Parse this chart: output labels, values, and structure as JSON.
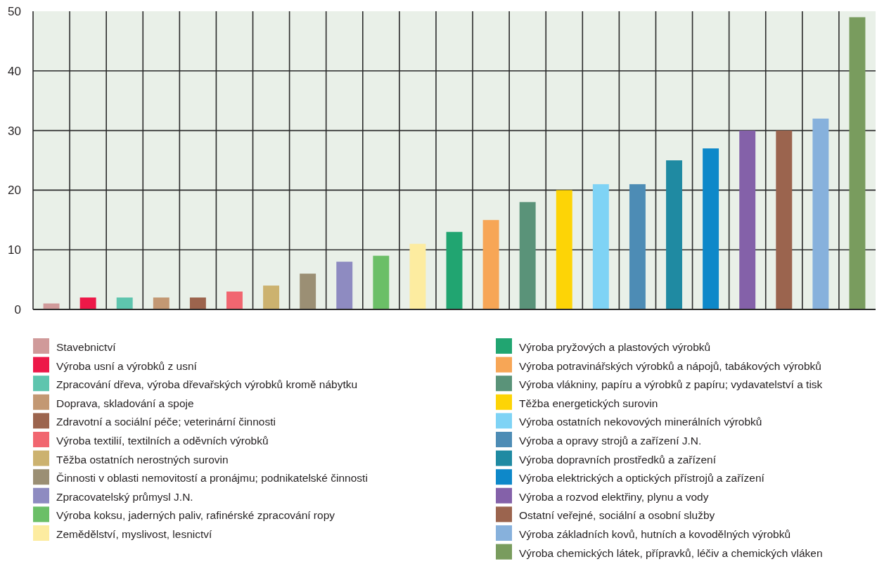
{
  "chart_data": {
    "type": "bar",
    "stacked": true,
    "categories": [
      null,
      null,
      null,
      null,
      null,
      null,
      null,
      null,
      null,
      null,
      null,
      null,
      null,
      null,
      null,
      null,
      null,
      null,
      null,
      null,
      null,
      null,
      null
    ],
    "series": [
      {
        "name": "Stavebnictví",
        "color": "#d09a9a",
        "values": [
          1,
          null,
          null,
          null,
          null,
          null,
          null,
          null,
          null,
          null,
          null,
          null,
          null,
          null,
          null,
          null,
          null,
          null,
          null,
          null,
          null,
          null,
          null
        ]
      },
      {
        "name": "Výroba usní a výrobků z usní",
        "color": "#ed1848",
        "values": [
          null,
          2,
          null,
          null,
          null,
          null,
          null,
          null,
          null,
          null,
          null,
          null,
          null,
          null,
          null,
          null,
          null,
          null,
          null,
          null,
          null,
          null,
          null
        ]
      },
      {
        "name": "Zpracování dřeva, výroba dřevařských výrobků kromě nábytku",
        "color": "#5ec5ae",
        "values": [
          null,
          null,
          2,
          null,
          null,
          null,
          null,
          null,
          null,
          null,
          null,
          null,
          null,
          null,
          null,
          null,
          null,
          null,
          null,
          null,
          null,
          null,
          null
        ]
      },
      {
        "name": "Doprava, skladování a spoje",
        "color": "#c39873",
        "values": [
          null,
          null,
          null,
          2,
          null,
          null,
          null,
          null,
          null,
          null,
          null,
          null,
          null,
          null,
          null,
          null,
          null,
          null,
          null,
          null,
          null,
          null,
          null
        ]
      },
      {
        "name": "Zdravotní a sociální péče; veterinární činnosti",
        "color": "#9c644d",
        "values": [
          null,
          null,
          null,
          null,
          2,
          null,
          null,
          null,
          null,
          null,
          null,
          null,
          null,
          null,
          null,
          null,
          null,
          null,
          null,
          null,
          null,
          null,
          null
        ]
      },
      {
        "name": "Výroba textilií, textilních a oděvních výrobků",
        "color": "#f16670",
        "values": [
          null,
          null,
          null,
          null,
          null,
          3,
          null,
          null,
          null,
          null,
          null,
          null,
          null,
          null,
          null,
          null,
          null,
          null,
          null,
          null,
          null,
          null,
          null
        ]
      },
      {
        "name": "Těžba ostatních nerostných surovin",
        "color": "#ccb26f",
        "values": [
          null,
          null,
          null,
          null,
          null,
          null,
          4,
          null,
          null,
          null,
          null,
          null,
          null,
          null,
          null,
          null,
          null,
          null,
          null,
          null,
          null,
          null,
          null
        ]
      },
      {
        "name": "Činnosti v oblasti nemovitostí a pronájmu; podnikatelské činnosti",
        "color": "#9b8f74",
        "values": [
          null,
          null,
          null,
          null,
          null,
          null,
          null,
          6,
          null,
          null,
          null,
          null,
          null,
          null,
          null,
          null,
          null,
          null,
          null,
          null,
          null,
          null,
          null
        ]
      },
      {
        "name": "Zpracovatelský průmysl J.N.",
        "color": "#8e8bc1",
        "values": [
          null,
          null,
          null,
          null,
          null,
          null,
          null,
          null,
          8,
          null,
          null,
          null,
          null,
          null,
          null,
          null,
          null,
          null,
          null,
          null,
          null,
          null,
          null
        ]
      },
      {
        "name": "Výroba koksu, jaderných paliv, rafinérské zpracování ropy",
        "color": "#6bbf67",
        "values": [
          null,
          null,
          null,
          null,
          null,
          null,
          null,
          null,
          null,
          9,
          null,
          null,
          null,
          null,
          null,
          null,
          null,
          null,
          null,
          null,
          null,
          null,
          null
        ]
      },
      {
        "name": "Zemědělství, myslivost, lesnictví",
        "color": "#fdeca0",
        "values": [
          null,
          null,
          null,
          null,
          null,
          null,
          null,
          null,
          null,
          null,
          11,
          null,
          null,
          null,
          null,
          null,
          null,
          null,
          null,
          null,
          null,
          null,
          null
        ]
      },
      {
        "name": "Výroba pryžových a plastových výrobků",
        "color": "#21a571",
        "values": [
          null,
          null,
          null,
          null,
          null,
          null,
          null,
          null,
          null,
          null,
          null,
          13,
          null,
          null,
          null,
          null,
          null,
          null,
          null,
          null,
          null,
          null,
          null
        ]
      },
      {
        "name": "Výroba potravinářských výrobků a nápojů, tabákových výrobků",
        "color": "#f7a656",
        "values": [
          null,
          null,
          null,
          null,
          null,
          null,
          null,
          null,
          null,
          null,
          null,
          null,
          15,
          null,
          null,
          null,
          null,
          null,
          null,
          null,
          null,
          null,
          null
        ]
      },
      {
        "name": "Výroba vlákniny, papíru a výrobků z papíru; vydavatelství a tisk",
        "color": "#5a9379",
        "values": [
          null,
          null,
          null,
          null,
          null,
          null,
          null,
          null,
          null,
          null,
          null,
          null,
          null,
          18,
          null,
          null,
          null,
          null,
          null,
          null,
          null,
          null,
          null
        ]
      },
      {
        "name": "Těžba energetických surovin",
        "color": "#fdd406",
        "values": [
          null,
          null,
          null,
          null,
          null,
          null,
          null,
          null,
          null,
          null,
          null,
          null,
          null,
          null,
          20,
          null,
          null,
          null,
          null,
          null,
          null,
          null,
          null
        ]
      },
      {
        "name": "Výroba ostatních nekovových minerálních výrobků",
        "color": "#7fd3f5",
        "values": [
          null,
          null,
          null,
          null,
          null,
          null,
          null,
          null,
          null,
          null,
          null,
          null,
          null,
          null,
          null,
          21,
          null,
          null,
          null,
          null,
          null,
          null,
          null
        ]
      },
      {
        "name": "Výroba a opravy strojů a zařízení J.N.",
        "color": "#4d8cb5",
        "values": [
          null,
          null,
          null,
          null,
          null,
          null,
          null,
          null,
          null,
          null,
          null,
          null,
          null,
          null,
          null,
          null,
          21,
          null,
          null,
          null,
          null,
          null,
          null
        ]
      },
      {
        "name": "Výroba dopravních prostředků a zařízení",
        "color": "#1f8aa2",
        "values": [
          null,
          null,
          null,
          null,
          null,
          null,
          null,
          null,
          null,
          null,
          null,
          null,
          null,
          null,
          null,
          null,
          null,
          25,
          null,
          null,
          null,
          null,
          null
        ]
      },
      {
        "name": "Výroba elektrických a optických přístrojů a zařízení",
        "color": "#0e88c9",
        "values": [
          null,
          null,
          null,
          null,
          null,
          null,
          null,
          null,
          null,
          null,
          null,
          null,
          null,
          null,
          null,
          null,
          null,
          null,
          27,
          null,
          null,
          null,
          null
        ]
      },
      {
        "name": "Výroba a rozvod elektřiny, plynu a vody",
        "color": "#8461a9",
        "values": [
          null,
          null,
          null,
          null,
          null,
          null,
          null,
          null,
          null,
          null,
          null,
          null,
          null,
          null,
          null,
          null,
          null,
          null,
          null,
          30,
          null,
          null,
          null
        ]
      },
      {
        "name": "Ostatní veřejné, sociální a osobní služby",
        "color": "#9b644e",
        "values": [
          null,
          null,
          null,
          null,
          null,
          null,
          null,
          null,
          null,
          null,
          null,
          null,
          null,
          null,
          null,
          null,
          null,
          null,
          null,
          null,
          30,
          null,
          null
        ]
      },
      {
        "name": "Výroba základních kovů, hutních a kovodělných výrobků",
        "color": "#87b1dc",
        "values": [
          null,
          null,
          null,
          null,
          null,
          null,
          null,
          null,
          null,
          null,
          null,
          null,
          null,
          null,
          null,
          null,
          null,
          null,
          null,
          null,
          null,
          32,
          null
        ]
      },
      {
        "name": "Výroba chemických látek, přípravků, léčiv a chemických vláken",
        "color": "#799c5e",
        "values": [
          null,
          null,
          null,
          null,
          null,
          null,
          null,
          null,
          null,
          null,
          null,
          null,
          null,
          null,
          null,
          null,
          null,
          null,
          null,
          null,
          null,
          null,
          49
        ]
      }
    ],
    "ylim": [
      0,
      50
    ],
    "yticks": [
      0,
      10,
      20,
      30,
      40,
      50
    ],
    "grid": true,
    "legend": "bottom",
    "tick_labels": "y"
  }
}
